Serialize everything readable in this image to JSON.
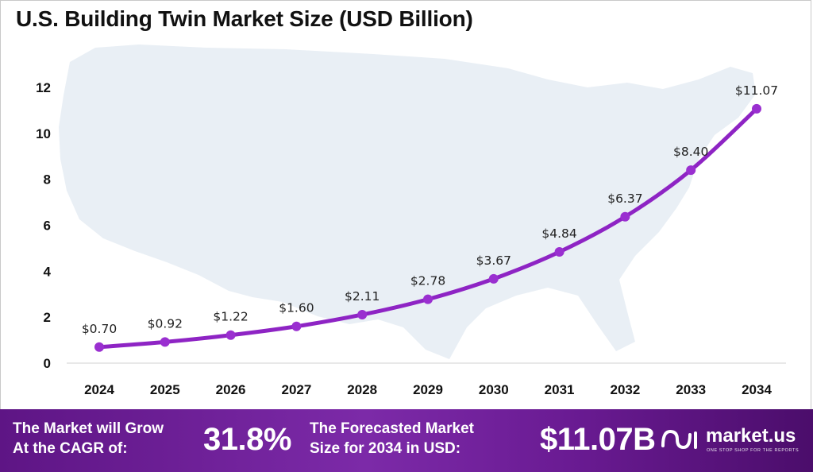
{
  "title": "U.S. Building Twin Market Size (USD Billion)",
  "colors": {
    "line": "#8e24c4",
    "marker": "#9a2fd0",
    "map": "#e9eff5",
    "footer_start": "#5e1585",
    "footer_end": "#4b0d6b"
  },
  "chart_data": {
    "type": "line",
    "title": "U.S. Building Twin Market Size (USD Billion)",
    "xlabel": "",
    "ylabel": "",
    "categories": [
      "2024",
      "2025",
      "2026",
      "2027",
      "2028",
      "2029",
      "2030",
      "2031",
      "2032",
      "2033",
      "2034"
    ],
    "values": [
      0.7,
      0.92,
      1.22,
      1.6,
      2.11,
      2.78,
      3.67,
      4.84,
      6.37,
      8.4,
      11.07
    ],
    "data_labels": [
      "$0.70",
      "$0.92",
      "$1.22",
      "$1.60",
      "$2.11",
      "$2.78",
      "$3.67",
      "$4.84",
      "$6.37",
      "$8.40",
      "$11.07"
    ],
    "yticks": [
      0,
      2,
      4,
      6,
      8,
      10,
      12
    ],
    "ylim": [
      0,
      12
    ],
    "grid": false,
    "legend": "none"
  },
  "footer": {
    "cagr_label_line1": "The Market will Grow",
    "cagr_label_line2": "At the CAGR of:",
    "cagr_value": "31.8%",
    "forecast_label_line1": "The Forecasted Market",
    "forecast_label_line2": "Size for 2034 in USD:",
    "forecast_value": "$11.07B",
    "brand_name": "market.us",
    "brand_tagline": "ONE STOP SHOP FOR THE REPORTS",
    "brand_icon": "market-us-logo-icon"
  }
}
